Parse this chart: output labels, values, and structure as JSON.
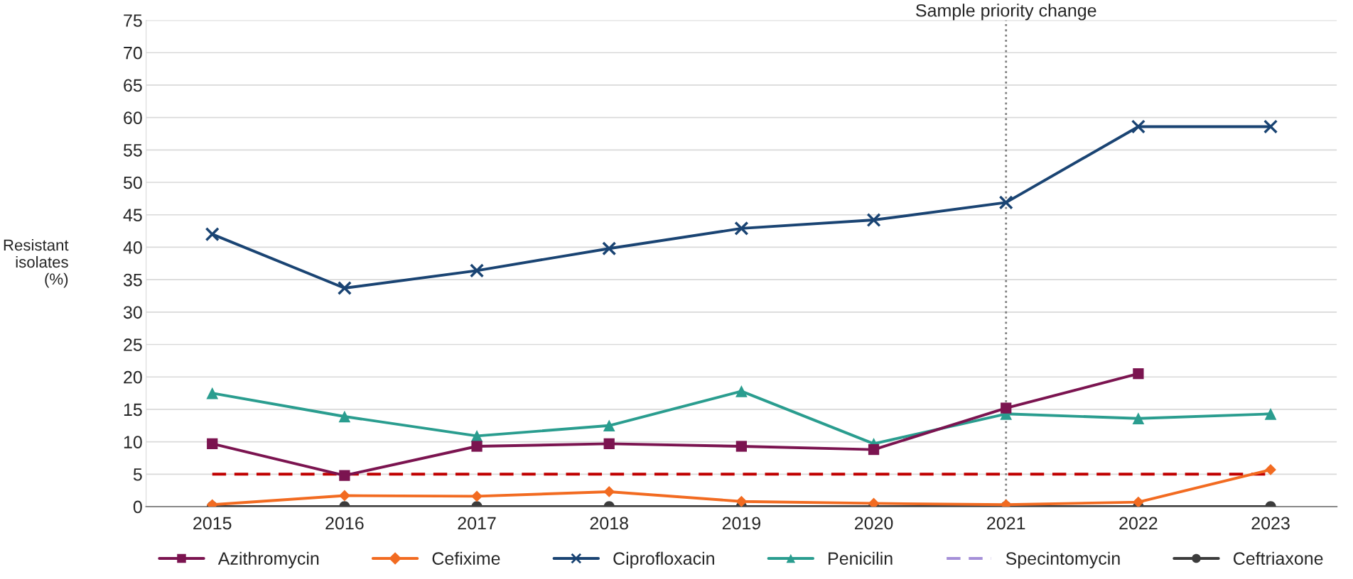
{
  "chart_data": {
    "type": "line",
    "ylabel": "Resistant\nisolates\n(%)",
    "categories": [
      "2015",
      "2016",
      "2017",
      "2018",
      "2019",
      "2020",
      "2021",
      "2022",
      "2023"
    ],
    "series": [
      {
        "name": "Azithromycin",
        "color": "#7b1450",
        "marker": "square",
        "values": [
          9.7,
          4.8,
          9.3,
          9.7,
          9.3,
          8.8,
          15.2,
          20.5,
          null
        ]
      },
      {
        "name": "Cefixime",
        "color": "#f26b21",
        "marker": "diamond",
        "values": [
          0.3,
          1.7,
          1.6,
          2.3,
          0.8,
          0.5,
          0.3,
          0.7,
          5.7
        ]
      },
      {
        "name": "Ciprofloxacin",
        "color": "#1a4473",
        "marker": "cross",
        "values": [
          42.0,
          33.7,
          36.4,
          39.8,
          42.9,
          44.2,
          46.9,
          58.6,
          58.6
        ]
      },
      {
        "name": "Penicilin",
        "color": "#2a9d8f",
        "marker": "triangle",
        "values": [
          17.5,
          13.9,
          10.9,
          12.5,
          17.8,
          9.7,
          14.3,
          13.6,
          14.3
        ]
      },
      {
        "name": "Specintomycin",
        "color": "#a58fd8",
        "marker": "none",
        "line_style": "dashed",
        "values": [
          null,
          null,
          null,
          null,
          null,
          null,
          null,
          null,
          null
        ]
      },
      {
        "name": "Ceftriaxone",
        "color": "#3c3c3c",
        "marker": "circle",
        "values": [
          0,
          0,
          0,
          0,
          0,
          0,
          0,
          0,
          0
        ]
      }
    ],
    "ylim": [
      0,
      75
    ],
    "yticks": [
      0,
      5,
      10,
      15,
      20,
      25,
      30,
      35,
      40,
      45,
      50,
      55,
      60,
      65,
      70,
      75
    ],
    "ref_lines": [
      {
        "axis": "y",
        "value": 5,
        "color": "#c00000",
        "line_style": "dashed"
      },
      {
        "axis": "x",
        "value": "2021",
        "label": "Sample priority change",
        "color": "#808080",
        "line_style": "dotted"
      }
    ],
    "grid": "y",
    "legend": "bottom"
  }
}
